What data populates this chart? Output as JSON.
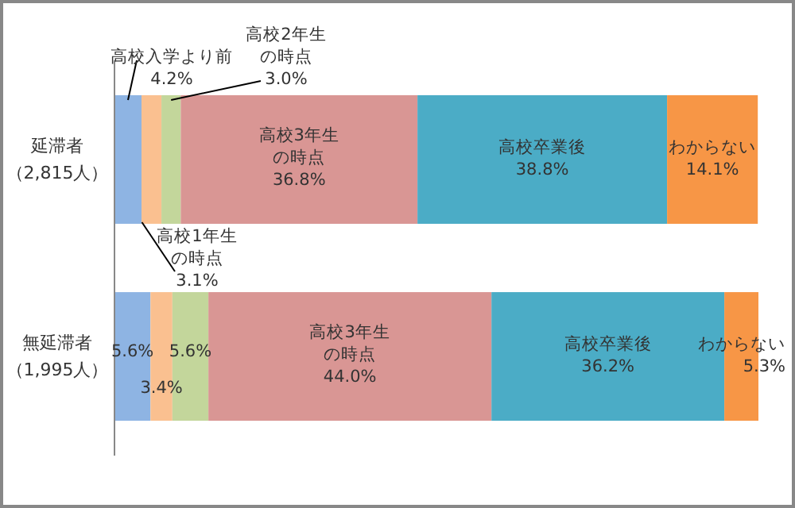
{
  "chart_data": {
    "type": "bar",
    "orientation": "horizontal",
    "stacked": true,
    "categories": [
      "延滞者（2,815人）",
      "無延滞者（1,995人）"
    ],
    "series": [
      {
        "name": "高校入学より前",
        "color": "#8eb4e3",
        "values": [
          4.2,
          5.6
        ],
        "value_labels": [
          "4.2%",
          "5.6%"
        ]
      },
      {
        "name": "高校1年生の時点",
        "color": "#fac090",
        "values": [
          3.1,
          3.4
        ],
        "value_labels": [
          "3.1%",
          "3.4%"
        ]
      },
      {
        "name": "高校2年生の時点",
        "color": "#c3d69b",
        "values": [
          3.0,
          5.6
        ],
        "value_labels": [
          "3.0%",
          "5.6%"
        ]
      },
      {
        "name": "高校3年生の時点",
        "color": "#d99694",
        "values": [
          36.8,
          44.0
        ],
        "value_labels": [
          "36.8%",
          "44.0%"
        ]
      },
      {
        "name": "高校卒業後",
        "color": "#4bacc6",
        "values": [
          38.8,
          36.2
        ],
        "value_labels": [
          "38.8%",
          "36.2%"
        ]
      },
      {
        "name": "わからない",
        "color": "#f79646",
        "values": [
          14.1,
          5.3
        ],
        "value_labels": [
          "14.1%",
          "5.3%"
        ]
      }
    ]
  }
}
